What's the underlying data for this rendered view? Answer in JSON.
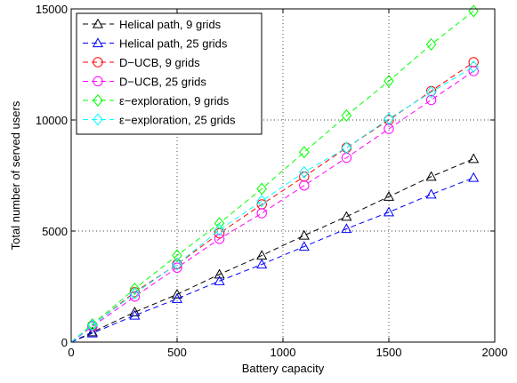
{
  "chart_data": {
    "type": "line",
    "xlabel": "Battery capacity",
    "ylabel": "Total number of served users",
    "xlim": [
      0,
      2000
    ],
    "ylim": [
      0,
      15000
    ],
    "xticks": [
      0,
      500,
      1000,
      1500,
      2000
    ],
    "yticks": [
      0,
      5000,
      10000,
      15000
    ],
    "xtick_labels": [
      "0",
      "500",
      "1000",
      "1500",
      "2000"
    ],
    "ytick_labels": [
      "0",
      "5000",
      "10000",
      "15000"
    ],
    "grid": true,
    "grid_style": "dotted",
    "legend_position": "top-left",
    "line_style": "dashed",
    "x": [
      100,
      300,
      500,
      700,
      900,
      1100,
      1300,
      1500,
      1700,
      1900
    ],
    "series": [
      {
        "name": "Helical path, 9 grids",
        "color": "#000000",
        "marker": "triangle",
        "values": [
          450,
          1350,
          2150,
          3050,
          3900,
          4800,
          5650,
          6550,
          7450,
          8250
        ]
      },
      {
        "name": "Helical path, 25 grids",
        "color": "#0000ff",
        "marker": "triangle",
        "values": [
          400,
          1200,
          1950,
          2750,
          3500,
          4300,
          5100,
          5850,
          6650,
          7400
        ]
      },
      {
        "name": "D−UCB, 9 grids",
        "color": "#ff0000",
        "marker": "circle",
        "values": [
          750,
          2250,
          3500,
          4900,
          6200,
          7450,
          8750,
          10000,
          11300,
          12600
        ]
      },
      {
        "name": "D−UCB, 25 grids",
        "color": "#ff00ff",
        "marker": "circle",
        "values": [
          700,
          2050,
          3350,
          4650,
          5800,
          7050,
          8300,
          9600,
          10900,
          12200
        ]
      },
      {
        "name": "ε−exploration, 9 grids",
        "color": "#00ff00",
        "marker": "diamond",
        "values": [
          800,
          2400,
          3900,
          5350,
          6900,
          8550,
          10200,
          11750,
          13400,
          14900
        ]
      },
      {
        "name": "ε−exploration, 25 grids",
        "color": "#00ffff",
        "marker": "diamond",
        "values": [
          750,
          2200,
          3500,
          5050,
          6350,
          7650,
          8750,
          10050,
          11250,
          12400
        ]
      }
    ]
  }
}
